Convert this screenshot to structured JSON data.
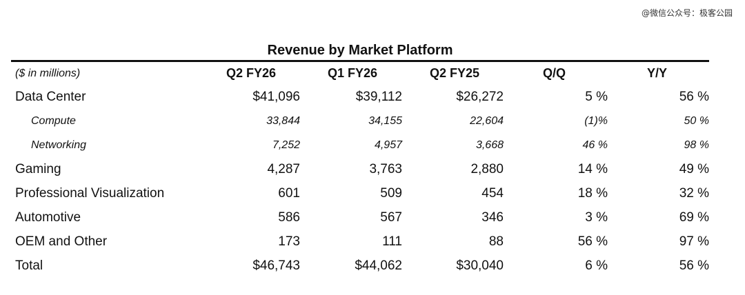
{
  "watermark": "@微信公众号：极客公园",
  "title": "Revenue by Market Platform",
  "columns": [
    "($ in millions)",
    "Q2 FY26",
    "Q1 FY26",
    "Q2 FY25",
    "Q/Q",
    "Y/Y"
  ],
  "rows": [
    {
      "label": "Data Center",
      "q2fy26": "$41,096",
      "q1fy26": "$39,112",
      "q2fy25": "$26,272",
      "qq": "5 %",
      "yy": "56 %"
    },
    {
      "label": "Compute",
      "q2fy26": "33,844",
      "q1fy26": "34,155",
      "q2fy25": "22,604",
      "qq": "(1)%",
      "yy": "50 %"
    },
    {
      "label": "Networking",
      "q2fy26": "7,252",
      "q1fy26": "4,957",
      "q2fy25": "3,668",
      "qq": "46 %",
      "yy": "98 %"
    },
    {
      "label": "Gaming",
      "q2fy26": "4,287",
      "q1fy26": "3,763",
      "q2fy25": "2,880",
      "qq": "14 %",
      "yy": "49 %"
    },
    {
      "label": "Professional Visualization",
      "q2fy26": "601",
      "q1fy26": "509",
      "q2fy25": "454",
      "qq": "18 %",
      "yy": "32 %"
    },
    {
      "label": "Automotive",
      "q2fy26": "586",
      "q1fy26": "567",
      "q2fy25": "346",
      "qq": "3 %",
      "yy": "69 %"
    },
    {
      "label": "OEM and Other",
      "q2fy26": "173",
      "q1fy26": "111",
      "q2fy25": "88",
      "qq": "56 %",
      "yy": "97 %"
    },
    {
      "label": "Total",
      "q2fy26": "$46,743",
      "q1fy26": "$44,062",
      "q2fy25": "$30,040",
      "qq": "6 %",
      "yy": "56 %"
    }
  ]
}
